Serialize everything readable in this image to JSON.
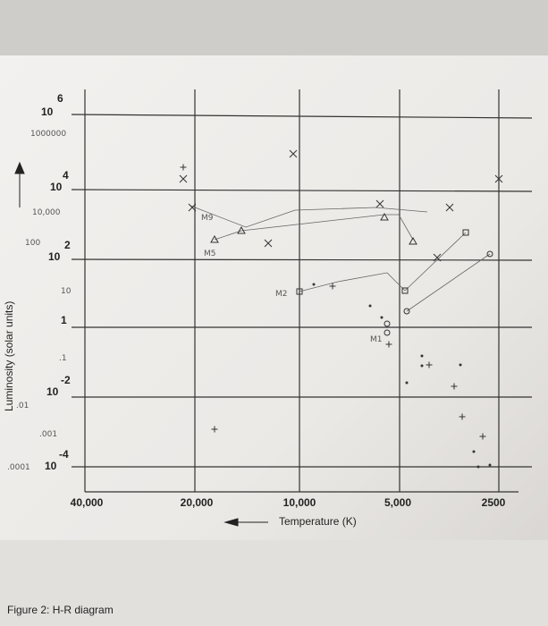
{
  "figure": {
    "y_axis": {
      "title": "Luminosity (solar units)",
      "labels": [
        {
          "text": "10",
          "sup": "6"
        },
        {
          "text": "1000000"
        },
        {
          "text": "10",
          "sup": "4"
        },
        {
          "text": "10,000"
        },
        {
          "text": "100"
        },
        {
          "text": "10",
          "sup": "2"
        },
        {
          "text": "10"
        },
        {
          "text": "1"
        },
        {
          "text": ".1"
        },
        {
          "text": "10",
          "sup": "-2"
        },
        {
          "text": ".01"
        },
        {
          "text": ".001"
        },
        {
          "text": ".0001"
        },
        {
          "text": "10",
          "sup": "-4"
        }
      ]
    },
    "x_axis": {
      "title": "Temperature (K)",
      "labels": [
        "40,000",
        "20,000",
        "10,000",
        "5,000",
        "2500"
      ]
    },
    "annotations": [
      "M9",
      "M5",
      "M2",
      "M1"
    ],
    "caption": "Figure 2: H-R diagram"
  }
}
